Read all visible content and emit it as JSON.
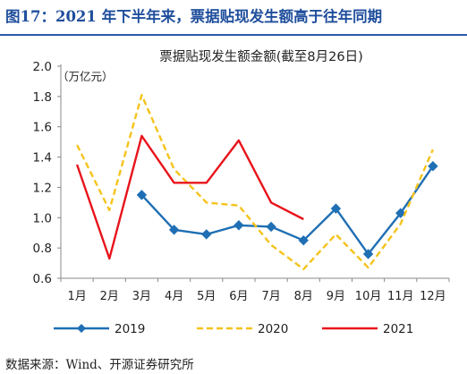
{
  "figure": {
    "title": "图17：2021 年下半年来，票据贴现发生额高于往年同期",
    "source": "数据来源：Wind、开源证券研究所"
  },
  "chart_data": {
    "type": "line",
    "title": "票据贴现发生额金额(截至8月26日)",
    "ylabel": "（万亿元）",
    "xlabel": "",
    "categories": [
      "1月",
      "2月",
      "3月",
      "4月",
      "5月",
      "6月",
      "7月",
      "8月",
      "9月",
      "10月",
      "11月",
      "12月"
    ],
    "ylim": [
      0.6,
      2.0
    ],
    "yticks": [
      "0.6",
      "0.8",
      "1.0",
      "1.2",
      "1.4",
      "1.6",
      "1.8",
      "2.0"
    ],
    "grid": false,
    "legend_position": "bottom",
    "series": [
      {
        "name": "2019",
        "color": "#1f6fb4",
        "style": "solid-diamond",
        "values": [
          null,
          null,
          1.15,
          0.92,
          0.89,
          0.95,
          0.94,
          0.85,
          1.06,
          0.76,
          1.03,
          1.34
        ]
      },
      {
        "name": "2020",
        "color": "#f5c31c",
        "style": "dashed",
        "values": [
          1.48,
          1.05,
          1.81,
          1.32,
          1.1,
          1.08,
          0.82,
          0.66,
          0.89,
          0.67,
          0.96,
          1.45
        ]
      },
      {
        "name": "2021",
        "color": "#e8141b",
        "style": "solid",
        "values": [
          1.35,
          0.73,
          1.54,
          1.23,
          1.23,
          1.51,
          1.1,
          0.99,
          null,
          null,
          null,
          null
        ]
      }
    ]
  }
}
